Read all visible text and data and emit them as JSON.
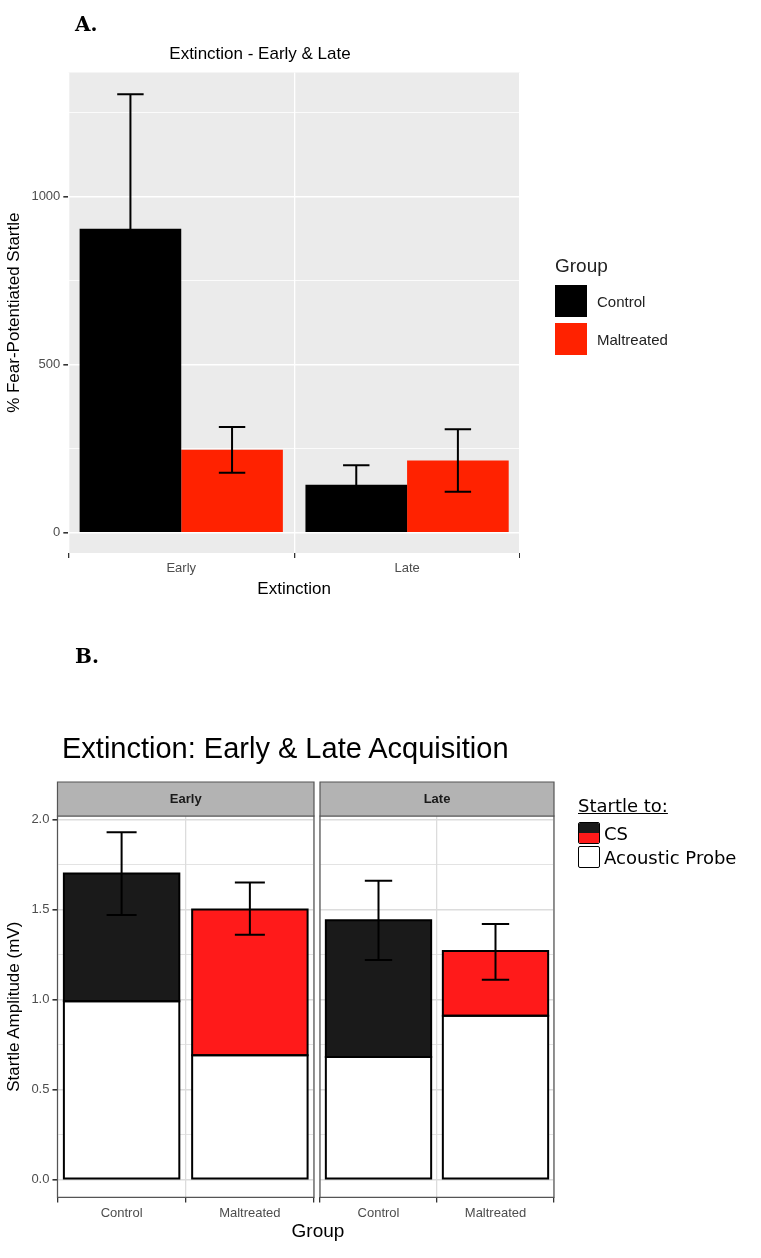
{
  "chart_data": [
    {
      "type": "bar",
      "title": "Extinction - Early & Late",
      "xlabel": "Extinction",
      "ylabel": "% Fear-Potentiated Startle",
      "legend_title": "Group",
      "legend": "right",
      "grid": true,
      "annotations": [
        "A."
      ],
      "categories": [
        "Early",
        "Late"
      ],
      "ylim": [
        -60,
        1370
      ],
      "yticks": [
        0,
        {
          "value": 250,
          "label": null
        },
        500,
        {
          "value": 750,
          "label": null
        },
        1000,
        {
          "value": 1250,
          "label": null
        }
      ],
      "series": [
        {
          "name": "Control",
          "color": "#000000",
          "values": [
            905,
            143
          ],
          "errors": [
            400,
            58
          ]
        },
        {
          "name": "Maltreated",
          "color": "#ff2200",
          "values": [
            247,
            215
          ],
          "errors": [
            68,
            93
          ]
        }
      ]
    },
    {
      "type": "bar",
      "title": "Extinction: Early & Late Acquisition",
      "subtitle": "Early",
      "xlabel": "Group",
      "ylabel": "Startle Amplitude (mV)",
      "legend_title": "Startle to:",
      "legend": "right",
      "grid": true,
      "stacked": true,
      "annotations": [
        "B."
      ],
      "categories": [
        "Control",
        "Maltreated"
      ],
      "ylim": [
        -0.1,
        2.02
      ],
      "yticks": [
        {
          "value": 0,
          "label": "0.0"
        },
        {
          "value": 0.25,
          "label": null
        },
        0.5,
        {
          "value": 0.75,
          "label": null
        },
        {
          "value": 1,
          "label": "1.0"
        },
        {
          "value": 1.25,
          "label": null
        },
        1.5,
        {
          "value": 1.75,
          "label": null
        },
        {
          "value": 2,
          "label": "2.0"
        }
      ],
      "series": [
        {
          "name": "Acoustic Probe",
          "color": "#ffffff",
          "values": [
            0.99,
            0.69
          ]
        },
        {
          "name": "CS",
          "colors": [
            "#1a1a1a",
            "#ff1a1a"
          ],
          "values": [
            0.71,
            0.81
          ],
          "errors": [
            [
              1.47,
              1.93
            ],
            [
              1.36,
              1.65
            ]
          ]
        }
      ]
    },
    {
      "type": "bar",
      "subtitle": "Late",
      "grid": true,
      "stacked": true,
      "tick_labels": "x",
      "categories": [
        "Control",
        "Maltreated"
      ],
      "ylim": [
        -0.1,
        2.02
      ],
      "yticks": [
        0,
        {
          "value": 0.25,
          "label": null
        },
        0.5,
        {
          "value": 0.75,
          "label": null
        },
        1,
        {
          "value": 1.25,
          "label": null
        },
        1.5,
        {
          "value": 1.75,
          "label": null
        },
        2
      ],
      "series": [
        {
          "color": "#ffffff",
          "values": [
            0.68,
            0.91
          ]
        },
        {
          "colors": [
            "#1a1a1a",
            "#ff1a1a"
          ],
          "values": [
            0.76,
            0.36
          ],
          "errors": [
            [
              1.22,
              1.66
            ],
            [
              1.11,
              1.42
            ]
          ]
        }
      ]
    }
  ]
}
